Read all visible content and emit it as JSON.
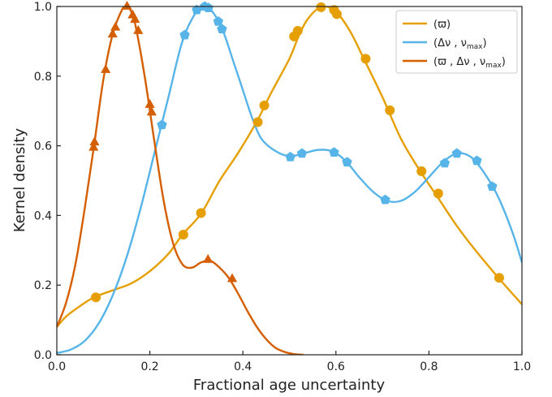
{
  "chart_data": {
    "type": "line",
    "xlabel": "Fractional age uncertainty",
    "ylabel": "Kernel density",
    "xlim": [
      0,
      1.0
    ],
    "ylim": [
      0,
      1.0
    ],
    "x_ticks": [
      "0.0",
      "0.2",
      "0.4",
      "0.6",
      "0.8",
      "1.0"
    ],
    "y_ticks": [
      "0.0",
      "0.2",
      "0.4",
      "0.6",
      "0.8",
      "1.0"
    ],
    "legend_placement": "top-right",
    "grid": false,
    "series": [
      {
        "name": "(ϖ)",
        "color": "#E69F00",
        "marker": "circle",
        "curve": [
          [
            0.0,
            0.08
          ],
          [
            0.02,
            0.11
          ],
          [
            0.05,
            0.14
          ],
          [
            0.08,
            0.165
          ],
          [
            0.12,
            0.185
          ],
          [
            0.16,
            0.205
          ],
          [
            0.2,
            0.24
          ],
          [
            0.24,
            0.29
          ],
          [
            0.27,
            0.345
          ],
          [
            0.31,
            0.405
          ],
          [
            0.35,
            0.5
          ],
          [
            0.39,
            0.58
          ],
          [
            0.43,
            0.67
          ],
          [
            0.46,
            0.75
          ],
          [
            0.5,
            0.85
          ],
          [
            0.52,
            0.915
          ],
          [
            0.54,
            0.965
          ],
          [
            0.57,
            1.0
          ],
          [
            0.6,
            0.985
          ],
          [
            0.63,
            0.93
          ],
          [
            0.66,
            0.85
          ],
          [
            0.7,
            0.74
          ],
          [
            0.74,
            0.62
          ],
          [
            0.78,
            0.53
          ],
          [
            0.82,
            0.45
          ],
          [
            0.86,
            0.37
          ],
          [
            0.9,
            0.3
          ],
          [
            0.95,
            0.22
          ],
          [
            1.0,
            0.145
          ]
        ],
        "points": [
          [
            0.084,
            0.165
          ],
          [
            0.272,
            0.345
          ],
          [
            0.31,
            0.407
          ],
          [
            0.432,
            0.668
          ],
          [
            0.446,
            0.716
          ],
          [
            0.51,
            0.914
          ],
          [
            0.518,
            0.93
          ],
          [
            0.568,
            0.998
          ],
          [
            0.596,
            0.99
          ],
          [
            0.602,
            0.978
          ],
          [
            0.664,
            0.85
          ],
          [
            0.716,
            0.702
          ],
          [
            0.784,
            0.527
          ],
          [
            0.82,
            0.463
          ],
          [
            0.951,
            0.221
          ]
        ]
      },
      {
        "name": "(Δν , ν",
        "name_sub": "max",
        "name_tail": ")",
        "color": "#56B4E9",
        "marker": "pentagon",
        "curve": [
          [
            0.0,
            0.005
          ],
          [
            0.03,
            0.015
          ],
          [
            0.06,
            0.04
          ],
          [
            0.09,
            0.09
          ],
          [
            0.12,
            0.17
          ],
          [
            0.15,
            0.28
          ],
          [
            0.18,
            0.42
          ],
          [
            0.21,
            0.58
          ],
          [
            0.24,
            0.74
          ],
          [
            0.27,
            0.9
          ],
          [
            0.3,
            0.985
          ],
          [
            0.32,
            1.0
          ],
          [
            0.34,
            0.975
          ],
          [
            0.36,
            0.92
          ],
          [
            0.38,
            0.84
          ],
          [
            0.4,
            0.76
          ],
          [
            0.42,
            0.68
          ],
          [
            0.44,
            0.62
          ],
          [
            0.47,
            0.585
          ],
          [
            0.5,
            0.57
          ],
          [
            0.53,
            0.578
          ],
          [
            0.56,
            0.588
          ],
          [
            0.59,
            0.585
          ],
          [
            0.62,
            0.558
          ],
          [
            0.65,
            0.51
          ],
          [
            0.68,
            0.468
          ],
          [
            0.71,
            0.442
          ],
          [
            0.74,
            0.442
          ],
          [
            0.77,
            0.468
          ],
          [
            0.8,
            0.51
          ],
          [
            0.83,
            0.553
          ],
          [
            0.86,
            0.578
          ],
          [
            0.89,
            0.568
          ],
          [
            0.92,
            0.52
          ],
          [
            0.95,
            0.45
          ],
          [
            0.98,
            0.35
          ],
          [
            1.0,
            0.265
          ]
        ],
        "points": [
          [
            0.226,
            0.66
          ],
          [
            0.275,
            0.918
          ],
          [
            0.301,
            0.99
          ],
          [
            0.318,
            1.0
          ],
          [
            0.326,
            0.996
          ],
          [
            0.347,
            0.957
          ],
          [
            0.355,
            0.935
          ],
          [
            0.502,
            0.568
          ],
          [
            0.527,
            0.578
          ],
          [
            0.596,
            0.581
          ],
          [
            0.624,
            0.553
          ],
          [
            0.706,
            0.445
          ],
          [
            0.834,
            0.55
          ],
          [
            0.86,
            0.578
          ],
          [
            0.903,
            0.557
          ],
          [
            0.936,
            0.483
          ]
        ]
      },
      {
        "name": "(ϖ , Δν , ν",
        "name_sub": "max",
        "name_tail": ")",
        "color": "#D55E00",
        "marker": "triangle",
        "curve": [
          [
            0.0,
            0.08
          ],
          [
            0.02,
            0.15
          ],
          [
            0.04,
            0.26
          ],
          [
            0.06,
            0.42
          ],
          [
            0.08,
            0.6
          ],
          [
            0.1,
            0.79
          ],
          [
            0.12,
            0.92
          ],
          [
            0.14,
            0.99
          ],
          [
            0.15,
            1.0
          ],
          [
            0.16,
            0.985
          ],
          [
            0.17,
            0.94
          ],
          [
            0.19,
            0.79
          ],
          [
            0.21,
            0.61
          ],
          [
            0.23,
            0.44
          ],
          [
            0.25,
            0.32
          ],
          [
            0.27,
            0.26
          ],
          [
            0.29,
            0.25
          ],
          [
            0.31,
            0.265
          ],
          [
            0.33,
            0.27
          ],
          [
            0.35,
            0.25
          ],
          [
            0.37,
            0.22
          ],
          [
            0.39,
            0.175
          ],
          [
            0.41,
            0.125
          ],
          [
            0.43,
            0.08
          ],
          [
            0.45,
            0.045
          ],
          [
            0.47,
            0.02
          ],
          [
            0.49,
            0.008
          ],
          [
            0.51,
            0.002
          ],
          [
            0.53,
            0.0
          ]
        ],
        "points": [
          [
            0.079,
            0.595
          ],
          [
            0.081,
            0.61
          ],
          [
            0.105,
            0.818
          ],
          [
            0.12,
            0.92
          ],
          [
            0.126,
            0.94
          ],
          [
            0.151,
            1.0
          ],
          [
            0.163,
            0.975
          ],
          [
            0.168,
            0.962
          ],
          [
            0.175,
            0.93
          ],
          [
            0.2,
            0.718
          ],
          [
            0.204,
            0.696
          ],
          [
            0.325,
            0.273
          ],
          [
            0.377,
            0.218
          ]
        ]
      }
    ]
  }
}
